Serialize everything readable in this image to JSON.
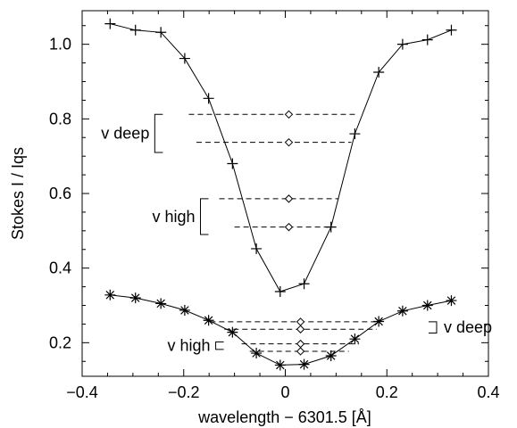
{
  "chart_data": {
    "type": "line",
    "xlabel": "wavelength − 6301.5 [Å]",
    "ylabel": "Stokes I / Iqs",
    "xlim": [
      -0.4,
      0.4
    ],
    "ylim": [
      0.11,
      1.09
    ],
    "xticks": [
      -0.4,
      -0.2,
      0.0,
      0.2,
      0.4
    ],
    "xtick_labels": [
      "−0.4",
      "−0.2",
      "0",
      "0.2",
      "0.4"
    ],
    "yticks": [
      0.2,
      0.4,
      0.6,
      0.8,
      1.0
    ],
    "ytick_labels": [
      "0.2",
      "0.4",
      "0.6",
      "0.8",
      "1.0"
    ],
    "grid": false,
    "series": [
      {
        "marker": "plus",
        "x": [
          -0.345,
          -0.295,
          -0.245,
          -0.198,
          -0.151,
          -0.104,
          -0.057,
          -0.01,
          0.037,
          0.09,
          0.137,
          0.184,
          0.231,
          0.28,
          0.327
        ],
        "y": [
          1.055,
          1.038,
          1.032,
          0.962,
          0.855,
          0.68,
          0.452,
          0.337,
          0.358,
          0.51,
          0.76,
          0.925,
          1.0,
          1.012,
          1.038
        ]
      },
      {
        "marker": "asterisk",
        "x": [
          -0.345,
          -0.295,
          -0.245,
          -0.198,
          -0.151,
          -0.104,
          -0.057,
          -0.01,
          0.037,
          0.09,
          0.137,
          0.184,
          0.231,
          0.28,
          0.327
        ],
        "y": [
          0.328,
          0.32,
          0.305,
          0.287,
          0.26,
          0.228,
          0.172,
          0.14,
          0.142,
          0.165,
          0.21,
          0.257,
          0.285,
          0.3,
          0.313
        ]
      }
    ],
    "bisector_lines": [
      {
        "y": 0.812,
        "x1": -0.19,
        "x2": 0.14,
        "center": 0.007
      },
      {
        "y": 0.737,
        "x1": -0.175,
        "x2": 0.13,
        "center": 0.007
      },
      {
        "y": 0.586,
        "x1": -0.13,
        "x2": 0.105,
        "center": 0.007
      },
      {
        "y": 0.51,
        "x1": -0.1,
        "x2": 0.09,
        "center": 0.007
      },
      {
        "y": 0.256,
        "x1": -0.148,
        "x2": 0.184,
        "center": 0.03
      },
      {
        "y": 0.236,
        "x1": -0.12,
        "x2": 0.18,
        "center": 0.03
      },
      {
        "y": 0.197,
        "x1": -0.086,
        "x2": 0.145,
        "center": 0.03
      },
      {
        "y": 0.177,
        "x1": -0.07,
        "x2": 0.125,
        "center": 0.03
      }
    ],
    "annotations": [
      {
        "text": "v deep",
        "bracket_x": -0.257,
        "y_top": 0.812,
        "y_bottom": 0.71,
        "side": "left"
      },
      {
        "text": "v high",
        "bracket_x": -0.167,
        "y_top": 0.586,
        "y_bottom": 0.49,
        "side": "left"
      },
      {
        "text": "v deep",
        "bracket_x": 0.298,
        "y_top": 0.256,
        "y_bottom": 0.226,
        "side": "right"
      },
      {
        "text": "v high",
        "bracket_x": -0.137,
        "y_top": 0.202,
        "y_bottom": 0.182,
        "side": "left"
      }
    ]
  }
}
